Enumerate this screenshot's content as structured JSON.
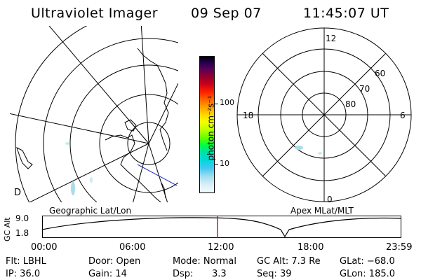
{
  "header": {
    "title": "Ultraviolet Imager",
    "date": "09 Sep 07",
    "time": "11:45:07 UT"
  },
  "geo_panel": {
    "label": "Geographic Lat/Lon",
    "coastline_marker": "D"
  },
  "polar_panel": {
    "label": "Apex MLat/MLT",
    "mlt_labels": [
      "12",
      "18",
      "6",
      "0"
    ],
    "lat_labels": [
      "60",
      "70",
      "80"
    ]
  },
  "colorbar": {
    "unit": "photon cm⁻²s⁻¹",
    "ticks": [
      "100",
      "10"
    ]
  },
  "gc_strip": {
    "axis_title": "GC Alt",
    "y_labels": [
      "9.0",
      "1.8"
    ],
    "time_labels": [
      "00:00",
      "06:00",
      "12:00",
      "18:00",
      "23:59"
    ],
    "marker_time": "11:45"
  },
  "info": {
    "flt": "Flt: LBHL",
    "ip": "IP: 36.0",
    "door": "Door: Open",
    "gain": "Gain: 14",
    "mode": "Mode: Normal",
    "dsp_label": "Dsp:",
    "dsp_value": "3.3",
    "gc_alt": "GC Alt: 7.3 Re",
    "seq": "Seq: 39",
    "glat": "GLat: −68.0",
    "glon": "GLon: 185.0"
  },
  "colors": {
    "marker": "#e00000",
    "track": "#2030c0",
    "aurora": "#a8dce8"
  }
}
